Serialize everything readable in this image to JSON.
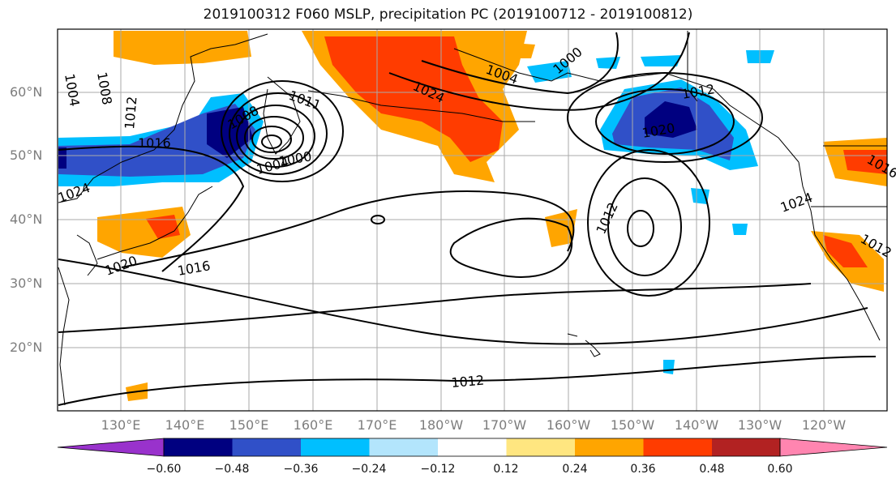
{
  "title": "2019100312 F060 MSLP, precipitation PC (2019100712 - 2019100812)",
  "lat_labels": [
    "60°N",
    "50°N",
    "40°N",
    "30°N",
    "20°N"
  ],
  "lon_labels": [
    "130°E",
    "140°E",
    "150°E",
    "160°E",
    "170°E",
    "180°W",
    "170°W",
    "160°W",
    "150°W",
    "140°W",
    "130°W",
    "120°W"
  ],
  "isobar_labels": [
    "1004",
    "1008",
    "1012",
    "1016",
    "1024",
    "1008",
    "1011",
    "1004",
    "1000",
    "1020",
    "1016",
    "1024",
    "1004",
    "1000",
    "1012",
    "1020",
    "1012",
    "1024",
    "1012",
    "1016",
    "1012"
  ],
  "colorbar": {
    "ticks": [
      "−0.60",
      "−0.48",
      "−0.36",
      "−0.24",
      "−0.12",
      "0.12",
      "0.24",
      "0.36",
      "0.48",
      "0.60"
    ],
    "colors": [
      "#9932cc",
      "#000080",
      "#3050c8",
      "#00bfff",
      "#b3e5fc",
      "#ffffff",
      "#ffe680",
      "#ffa500",
      "#ff3c00",
      "#b22222",
      "#ff85b0"
    ]
  },
  "fill_colors": {
    "strong_pos": "#ff3c00",
    "mid_pos": "#ffa500",
    "weak_pos": "#ffe680",
    "weak_neg": "#00bfff",
    "mid_neg": "#3050c8",
    "strong_neg": "#000080"
  }
}
